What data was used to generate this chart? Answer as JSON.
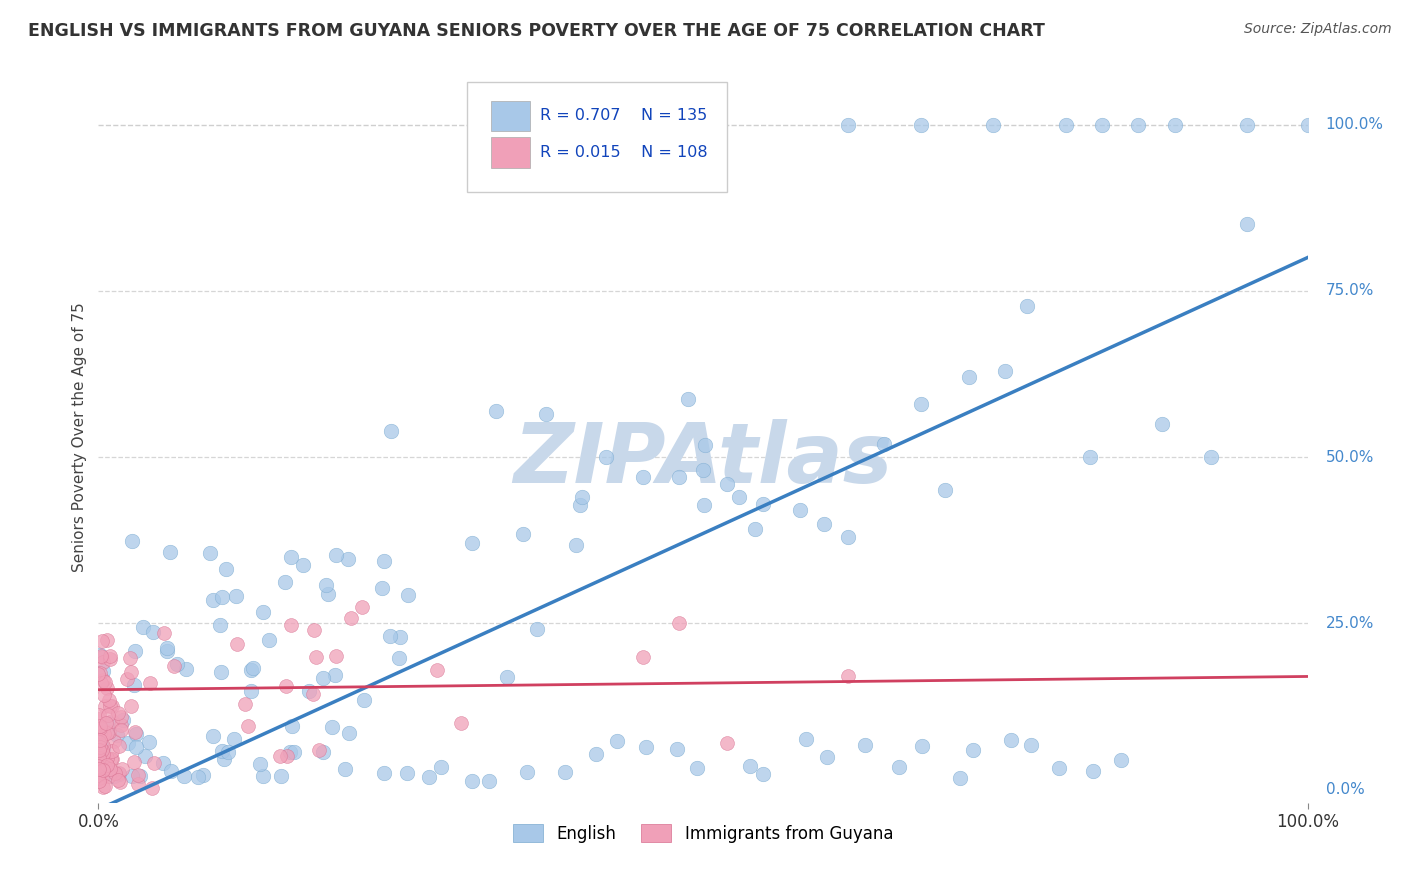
{
  "title": "ENGLISH VS IMMIGRANTS FROM GUYANA SENIORS POVERTY OVER THE AGE OF 75 CORRELATION CHART",
  "source": "Source: ZipAtlas.com",
  "ylabel": "Seniors Poverty Over the Age of 75",
  "ytick_labels": [
    "0.0%",
    "25.0%",
    "50.0%",
    "75.0%",
    "100.0%"
  ],
  "ytick_values": [
    0,
    25,
    50,
    75,
    100
  ],
  "english_R": 0.707,
  "english_N": 135,
  "guyana_R": 0.015,
  "guyana_N": 108,
  "english_color": "#a8c8e8",
  "english_edge_color": "#7aaad0",
  "english_line_color": "#3a7fc1",
  "guyana_color": "#f0a0b8",
  "guyana_edge_color": "#d87090",
  "guyana_line_color": "#d04060",
  "watermark": "ZIPAtlas",
  "watermark_color": "#c8d8ea",
  "background_color": "#ffffff",
  "title_color": "#333333",
  "legend_r_color": "#1144bb",
  "grid_color": "#cccccc",
  "top_dashed_line_color": "#bbbbbb",
  "right_label_color": "#4488cc"
}
